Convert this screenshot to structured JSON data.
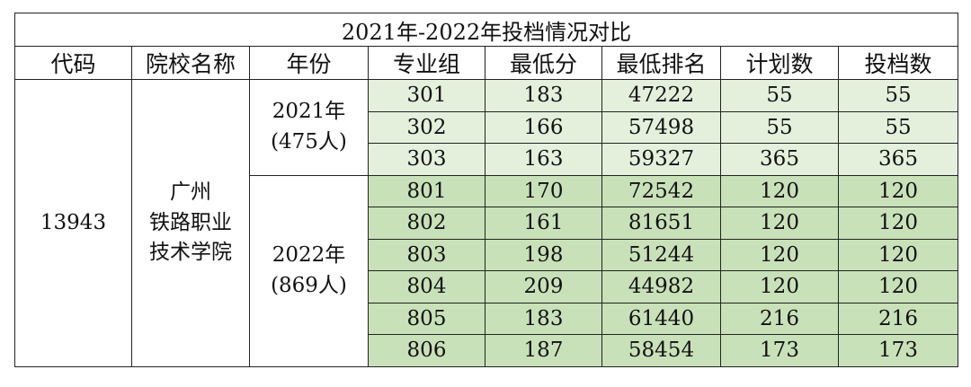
{
  "title": "2021年-2022年投档情况对比",
  "headers": [
    "代码",
    "院校名称",
    "年份",
    "专业组",
    "最低分",
    "最低排名",
    "计划数",
    "投档数"
  ],
  "school_code": "13943",
  "school_name_lines": [
    "广州",
    "铁路职业",
    "技术学院"
  ],
  "years": [
    {
      "label_lines": [
        "2021年",
        "(475人)"
      ],
      "rows": [
        [
          "301",
          "183",
          "47222",
          "55",
          "55"
        ],
        [
          "302",
          "166",
          "57498",
          "55",
          "55"
        ],
        [
          "303",
          "163",
          "59327",
          "365",
          "365"
        ]
      ]
    },
    {
      "label_lines": [
        "2022年",
        "(869人)"
      ],
      "rows": [
        [
          "801",
          "170",
          "72542",
          "120",
          "120"
        ],
        [
          "802",
          "161",
          "81651",
          "120",
          "120"
        ],
        [
          "803",
          "198",
          "51244",
          "120",
          "120"
        ],
        [
          "804",
          "209",
          "44982",
          "120",
          "120"
        ],
        [
          "805",
          "183",
          "61440",
          "216",
          "216"
        ],
        [
          "806",
          "187",
          "58454",
          "173",
          "173"
        ]
      ]
    }
  ],
  "colors": {
    "row_2021_bg": "#e4f0dc",
    "row_2022_bg": "#c9e1b8",
    "border": "#222222"
  }
}
